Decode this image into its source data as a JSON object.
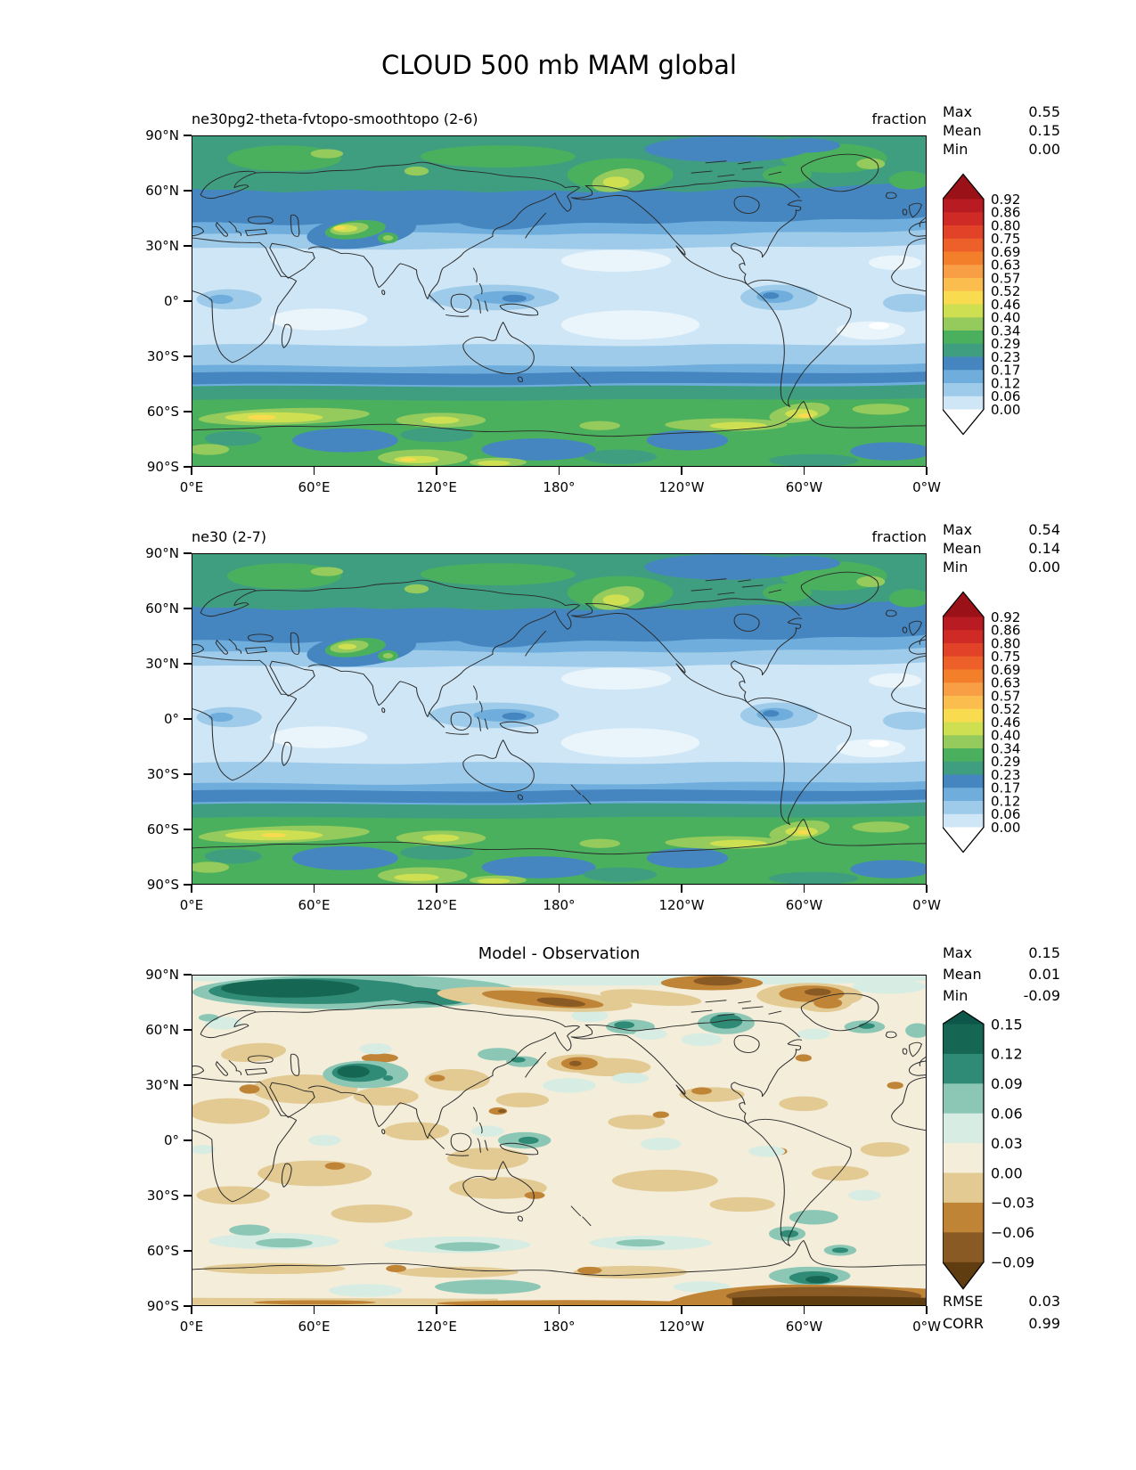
{
  "main_title": "CLOUD 500 mb MAM global",
  "chart_data": [
    {
      "type": "heatmap",
      "title": "ne30pg2-theta-fvtopo-smoothtopo (2-6)",
      "units": "fraction",
      "stats": [
        {
          "label": "Max",
          "value": "0.55"
        },
        {
          "label": "Mean",
          "value": "0.15"
        },
        {
          "label": "Min",
          "value": "0.00"
        }
      ],
      "colorbar_levels": [
        "0.92",
        "0.86",
        "0.80",
        "0.75",
        "0.69",
        "0.63",
        "0.57",
        "0.52",
        "0.46",
        "0.40",
        "0.34",
        "0.29",
        "0.23",
        "0.17",
        "0.12",
        "0.06",
        "0.00"
      ],
      "colorbar_colors": [
        "#9A1218",
        "#B81B21",
        "#D02A27",
        "#E24328",
        "#EE6029",
        "#F47F2B",
        "#F89E45",
        "#FBBD4E",
        "#F8DB4E",
        "#CEE051",
        "#95CB5C",
        "#4BB05D",
        "#3F9E80",
        "#4586C1",
        "#6FAEDC",
        "#9FCBEA",
        "#CEE6F6",
        "#FFFFFF"
      ],
      "xticks": [
        "0°E",
        "60°E",
        "120°E",
        "180°",
        "120°W",
        "60°W",
        "0°W"
      ],
      "yticks": [
        "90°N",
        "60°N",
        "30°N",
        "0°",
        "30°S",
        "60°S",
        "90°S"
      ]
    },
    {
      "type": "heatmap",
      "title": "ne30 (2-7)",
      "units": "fraction",
      "stats": [
        {
          "label": "Max",
          "value": "0.54"
        },
        {
          "label": "Mean",
          "value": "0.14"
        },
        {
          "label": "Min",
          "value": "0.00"
        }
      ],
      "colorbar_levels": [
        "0.92",
        "0.86",
        "0.80",
        "0.75",
        "0.69",
        "0.63",
        "0.57",
        "0.52",
        "0.46",
        "0.40",
        "0.34",
        "0.29",
        "0.23",
        "0.17",
        "0.12",
        "0.06",
        "0.00"
      ],
      "colorbar_colors": [
        "#9A1218",
        "#B81B21",
        "#D02A27",
        "#E24328",
        "#EE6029",
        "#F47F2B",
        "#F89E45",
        "#FBBD4E",
        "#F8DB4E",
        "#CEE051",
        "#95CB5C",
        "#4BB05D",
        "#3F9E80",
        "#4586C1",
        "#6FAEDC",
        "#9FCBEA",
        "#CEE6F6",
        "#FFFFFF"
      ],
      "xticks": [
        "0°E",
        "60°E",
        "120°E",
        "180°",
        "120°W",
        "60°W",
        "0°W"
      ],
      "yticks": [
        "90°N",
        "60°N",
        "30°N",
        "0°",
        "30°S",
        "60°S",
        "90°S"
      ]
    },
    {
      "type": "heatmap",
      "title": "Model - Observation",
      "units": "",
      "stats": [
        {
          "label": "Max",
          "value": "0.15"
        },
        {
          "label": "Mean",
          "value": "0.01"
        },
        {
          "label": "Min",
          "value": "-0.09"
        }
      ],
      "extra_stats": [
        {
          "label": "RMSE",
          "value": "0.03"
        },
        {
          "label": "CORR",
          "value": "0.99"
        }
      ],
      "colorbar_levels": [
        "0.15",
        "0.12",
        "0.09",
        "0.06",
        "0.03",
        "0.00",
        "−0.03",
        "−0.06",
        "−0.09"
      ],
      "colorbar_colors": [
        "#0D574A",
        "#156653",
        "#2F8A76",
        "#8CC7B6",
        "#D7EDE4",
        "#F3EDDA",
        "#E2CA92",
        "#C08437",
        "#8A5A24",
        "#5F3D10"
      ],
      "xticks": [
        "0°E",
        "60°E",
        "120°E",
        "180°",
        "120°W",
        "60°W",
        "0°W"
      ],
      "yticks": [
        "90°N",
        "60°N",
        "30°N",
        "0°",
        "30°S",
        "60°S",
        "90°S"
      ]
    }
  ]
}
